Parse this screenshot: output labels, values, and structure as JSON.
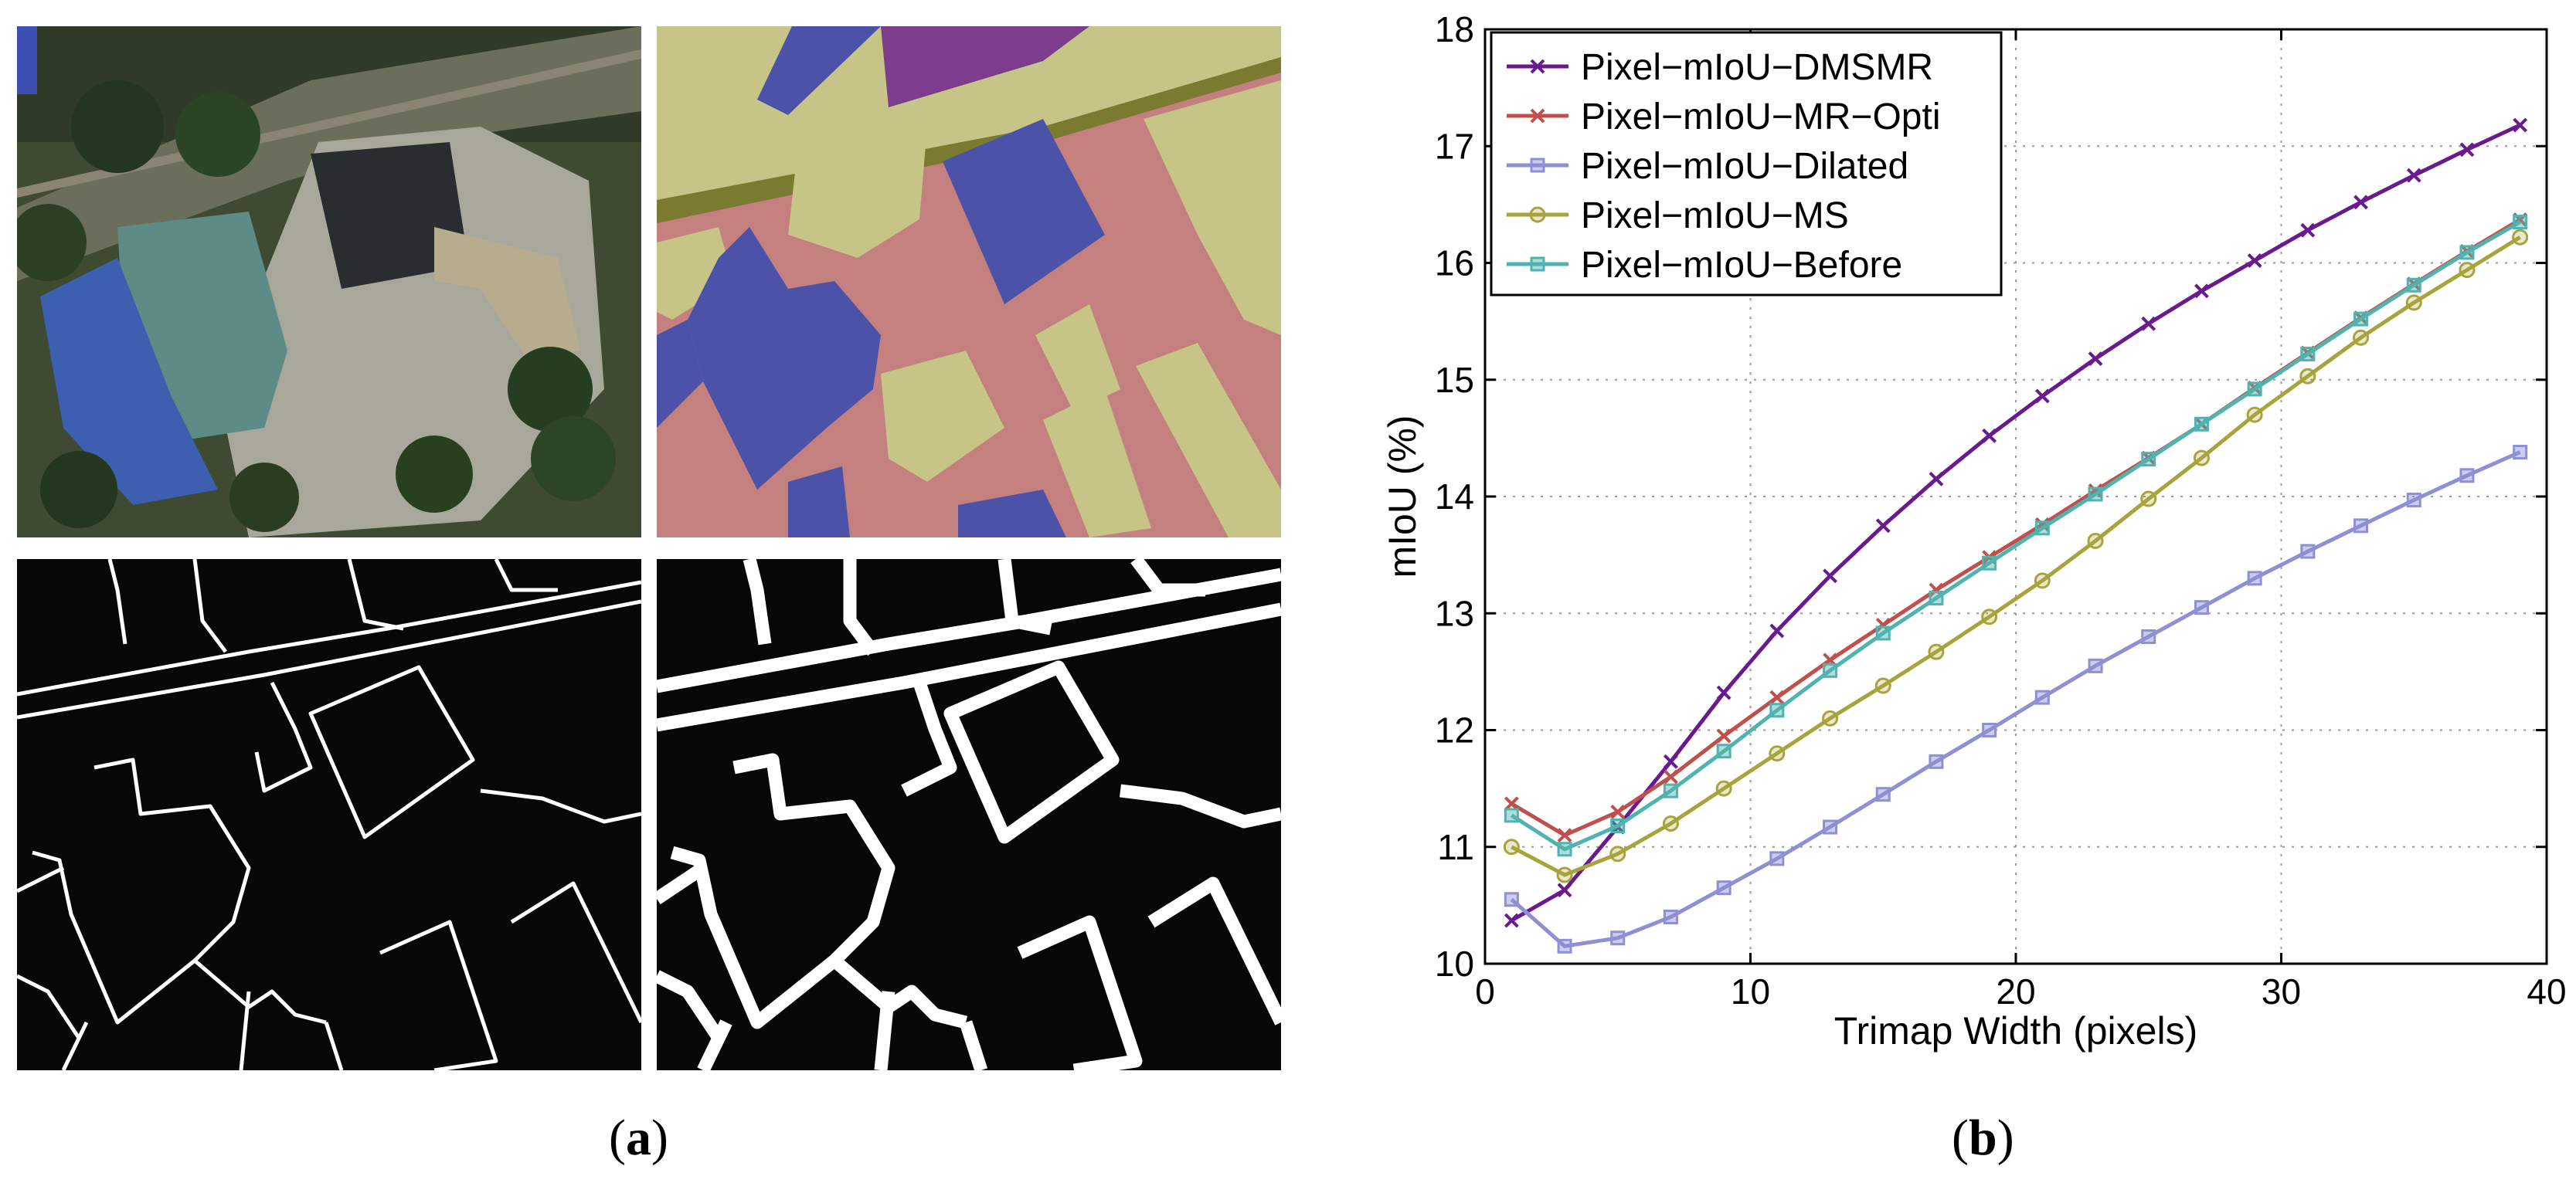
{
  "figure": {
    "caption_a": "(a)",
    "caption_b": "(b)",
    "caption_a_letter": "a",
    "caption_b_letter": "b"
  },
  "images": {
    "aerial": "aerial-photo-building",
    "segmentation": "semantic-label-map",
    "thin_boundary": "thin-boundary-mask",
    "dilated_boundary": "dilated-boundary-mask",
    "colors": {
      "building": "#4b52a8",
      "vegetation": "#c6c487",
      "road": "#c47f7f",
      "water": "#7d3d8c",
      "tree": "#7a7a30",
      "mask_bg": "#050807",
      "mask_edge": "#ffffff"
    }
  },
  "chart_data": {
    "type": "line",
    "xlabel": "Trimap Width (pixels)",
    "ylabel": "mIoU (%)",
    "xlim": [
      0,
      40
    ],
    "ylim": [
      10,
      18
    ],
    "xticks": [
      0,
      10,
      20,
      30,
      40
    ],
    "yticks": [
      10,
      11,
      12,
      13,
      14,
      15,
      16,
      17,
      18
    ],
    "grid": true,
    "legend_position": "top-left",
    "x": [
      1,
      3,
      5,
      7,
      9,
      11,
      13,
      15,
      17,
      19,
      21,
      23,
      25,
      27,
      29,
      31,
      33,
      35,
      37,
      39
    ],
    "series": [
      {
        "name": "Pixel−mIoU−DMSMR",
        "color": "#6a1a8f",
        "marker": "x",
        "values": [
          10.37,
          10.63,
          11.17,
          11.73,
          12.32,
          12.85,
          13.32,
          13.75,
          14.15,
          14.52,
          14.86,
          15.18,
          15.48,
          15.76,
          16.02,
          16.28,
          16.52,
          16.75,
          16.97,
          17.18
        ]
      },
      {
        "name": "Pixel−mIoU−MR−Opti",
        "color": "#c0504d",
        "marker": "x",
        "values": [
          11.37,
          11.1,
          11.3,
          11.6,
          11.95,
          12.28,
          12.6,
          12.9,
          13.2,
          13.48,
          13.76,
          14.05,
          14.33,
          14.62,
          14.93,
          15.23,
          15.53,
          15.82,
          16.1,
          16.37
        ]
      },
      {
        "name": "Pixel−mIoU−Dilated",
        "color": "#8f8fd4",
        "marker": "square",
        "values": [
          10.55,
          10.15,
          10.22,
          10.4,
          10.65,
          10.9,
          11.17,
          11.45,
          11.73,
          12.0,
          12.28,
          12.55,
          12.8,
          13.05,
          13.3,
          13.53,
          13.75,
          13.97,
          14.18,
          14.38
        ]
      },
      {
        "name": "Pixel−mIoU−MS",
        "color": "#a8a43c",
        "marker": "circle",
        "values": [
          11.0,
          10.76,
          10.94,
          11.2,
          11.5,
          11.8,
          12.1,
          12.38,
          12.67,
          12.97,
          13.28,
          13.62,
          13.98,
          14.33,
          14.7,
          15.03,
          15.36,
          15.66,
          15.94,
          16.22
        ]
      },
      {
        "name": "Pixel−mIoU−Before",
        "color": "#4fb3b0",
        "marker": "square",
        "values": [
          11.27,
          10.98,
          11.18,
          11.48,
          11.82,
          12.17,
          12.51,
          12.83,
          13.13,
          13.43,
          13.73,
          14.02,
          14.32,
          14.62,
          14.92,
          15.22,
          15.52,
          15.81,
          16.09,
          16.35
        ]
      }
    ]
  }
}
